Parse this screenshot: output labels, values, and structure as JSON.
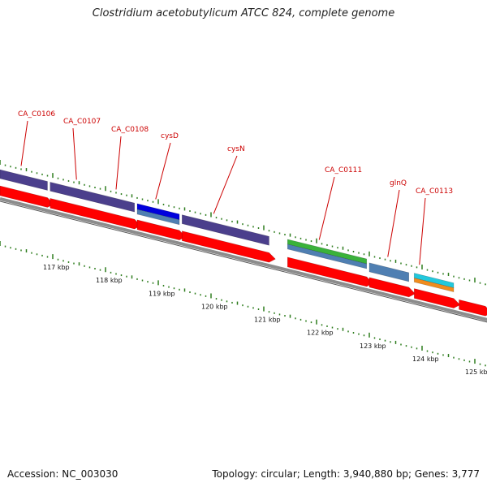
{
  "header": {
    "title": "Clostridium acetobutylicum ATCC 824, complete genome"
  },
  "footer": {
    "accession": "Accession: NC_003030",
    "summary": "Topology: circular; Length: 3,940,880 bp; Genes: 3,777"
  },
  "colors": {
    "backbone": "#8c8c8c",
    "cds": "#ff0000",
    "gene_purple": "#4b3f8c",
    "gene_blue": "#0000dd",
    "gene_steel": "#4f7fb2",
    "gene_green": "#3ab23a",
    "gene_cyan": "#22c8dc",
    "gene_orange": "#f08c1e",
    "tick": "#2e7d1e",
    "label": "#cc0000"
  },
  "chart_data": {
    "type": "genome-map",
    "view_range_kbp": [
      116,
      125.5
    ],
    "axis_ticks": [
      {
        "kbp": 117,
        "label": "117 kbp"
      },
      {
        "kbp": 118,
        "label": "118 kbp"
      },
      {
        "kbp": 119,
        "label": "119 kbp"
      },
      {
        "kbp": 120,
        "label": "120 kbp"
      },
      {
        "kbp": 121,
        "label": "121 kbp"
      },
      {
        "kbp": 122,
        "label": "122 kbp"
      },
      {
        "kbp": 123,
        "label": "123 kbp"
      },
      {
        "kbp": 124,
        "label": "124 kbp"
      },
      {
        "kbp": 125,
        "label": "125 kbp"
      }
    ],
    "genes": [
      {
        "name": "CA_C0106",
        "start": 116.0,
        "end": 116.9,
        "color": "purple",
        "label": true
      },
      {
        "name": "CA_C0107",
        "start": 116.95,
        "end": 118.55,
        "color": "purple",
        "label": true
      },
      {
        "name": "CA_C0108",
        "start": 118.6,
        "end": 119.4,
        "color": "blue",
        "label": true
      },
      {
        "name": "cysD",
        "start": 118.6,
        "end": 119.4,
        "color": "steel",
        "label": true
      },
      {
        "name": "cysN",
        "start": 119.45,
        "end": 121.1,
        "color": "purple",
        "label": true
      },
      {
        "name": "CA_C0111",
        "start": 121.45,
        "end": 122.95,
        "color": "green",
        "label": true
      },
      {
        "name": "CA_C0111b",
        "start": 121.45,
        "end": 122.95,
        "color": "steel",
        "label": false
      },
      {
        "name": "glnQ",
        "start": 123.0,
        "end": 123.75,
        "color": "steel",
        "label": true
      },
      {
        "name": "CA_C0113",
        "start": 123.85,
        "end": 124.6,
        "color": "cyan",
        "label": true
      },
      {
        "name": "CA_C0113b",
        "start": 123.85,
        "end": 124.6,
        "color": "orange",
        "label": false
      }
    ],
    "cds": [
      {
        "start": 116.0,
        "end": 116.9
      },
      {
        "start": 116.95,
        "end": 118.55
      },
      {
        "start": 118.6,
        "end": 119.4
      },
      {
        "start": 119.45,
        "end": 121.1
      },
      {
        "start": 121.45,
        "end": 122.95
      },
      {
        "start": 123.0,
        "end": 123.75
      },
      {
        "start": 123.85,
        "end": 124.6
      },
      {
        "start": 124.7,
        "end": 125.2
      }
    ],
    "gene_labels": [
      {
        "text": "CA_C0106",
        "kbp": 116.4
      },
      {
        "text": "CA_C0107",
        "kbp": 117.45
      },
      {
        "text": "CA_C0108",
        "kbp": 118.2
      },
      {
        "text": "cysD",
        "kbp": 118.95
      },
      {
        "text": "cysN",
        "kbp": 120.05
      },
      {
        "text": "CA_C0111",
        "kbp": 122.05
      },
      {
        "text": "glnQ",
        "kbp": 123.35
      },
      {
        "text": "CA_C0113",
        "kbp": 123.95
      }
    ]
  }
}
